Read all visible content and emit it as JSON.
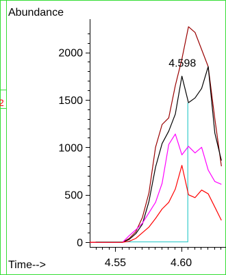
{
  "chart_data": {
    "type": "line",
    "title": "",
    "ylabel": "Abundance",
    "xlabel": "Time-->",
    "xlim": [
      4.5305,
      4.634
    ],
    "ylim": [
      -50,
      2350
    ],
    "x_ticks": [
      4.55,
      4.6
    ],
    "x_tick_labels": [
      "4.55",
      "4.60"
    ],
    "y_ticks": [
      0,
      500,
      1000,
      1500,
      2000
    ],
    "y_tick_labels": [
      "0",
      "500",
      "1000",
      "1500",
      "2000"
    ],
    "grid": false,
    "side_marker": {
      "text": "2",
      "color": "#ff0000"
    },
    "annotation": {
      "text": "4.598",
      "x": 4.605,
      "y": 1790
    },
    "peak_marker": {
      "x": 4.605,
      "y_top": 1470,
      "baseline": 0,
      "x_start": 4.535,
      "color": "#33cccc"
    },
    "series": [
      {
        "color": "#990000",
        "x": [
          4.5305,
          4.5355,
          4.5405,
          4.5455,
          4.5505,
          4.5555,
          4.5605,
          4.5655,
          4.5705,
          4.5755,
          4.5805,
          4.5855,
          4.5905,
          4.5955,
          4.6005,
          4.6055,
          4.6105,
          4.6155,
          4.6205,
          4.6255,
          4.6305
        ],
        "y": [
          0,
          0,
          0,
          0,
          0,
          0,
          40,
          110,
          260,
          520,
          1000,
          1240,
          1310,
          1650,
          1930,
          2270,
          2210,
          2030,
          1850,
          1300,
          800
        ]
      },
      {
        "color": "#000000",
        "x": [
          4.5305,
          4.5355,
          4.5405,
          4.5455,
          4.5505,
          4.5555,
          4.5605,
          4.5655,
          4.5705,
          4.5755,
          4.5805,
          4.5855,
          4.5905,
          4.5955,
          4.6005,
          4.6055,
          4.6105,
          4.6155,
          4.6205,
          4.6255,
          4.6305
        ],
        "y": [
          0,
          0,
          0,
          0,
          0,
          0,
          30,
          90,
          190,
          430,
          790,
          1040,
          1170,
          1350,
          1750,
          1470,
          1520,
          1620,
          1850,
          1150,
          860
        ]
      },
      {
        "color": "#ff00ff",
        "x": [
          4.5305,
          4.5355,
          4.5405,
          4.5455,
          4.5505,
          4.5555,
          4.5605,
          4.5655,
          4.5705,
          4.5755,
          4.5805,
          4.5855,
          4.5905,
          4.5955,
          4.6005,
          4.6055,
          4.6105,
          4.6155,
          4.6205,
          4.6255,
          4.6305
        ],
        "y": [
          0,
          0,
          0,
          0,
          0,
          0,
          70,
          130,
          200,
          310,
          420,
          620,
          1030,
          1140,
          920,
          1010,
          940,
          1000,
          760,
          640,
          610
        ]
      },
      {
        "color": "#ff0000",
        "x": [
          4.5305,
          4.5355,
          4.5405,
          4.5455,
          4.5505,
          4.5555,
          4.5605,
          4.5655,
          4.5705,
          4.5755,
          4.5805,
          4.5855,
          4.5905,
          4.5955,
          4.6005,
          4.6055,
          4.6105,
          4.6155,
          4.6205,
          4.6255,
          4.6305
        ],
        "y": [
          0,
          0,
          0,
          0,
          0,
          0,
          10,
          40,
          100,
          160,
          250,
          350,
          420,
          560,
          810,
          500,
          470,
          550,
          510,
          370,
          230
        ]
      }
    ]
  }
}
